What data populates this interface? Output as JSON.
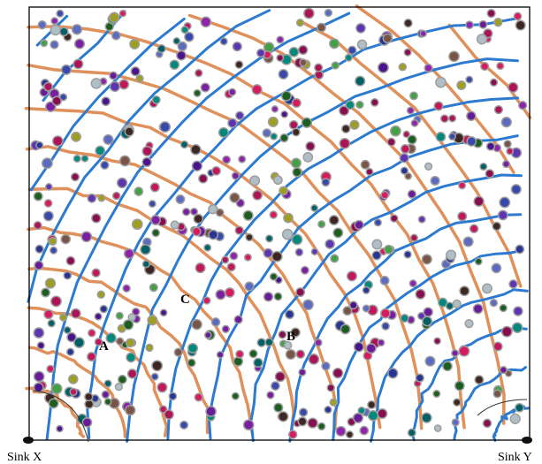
{
  "labels": {
    "point_a": "A",
    "point_b": "B",
    "point_c": "C",
    "sink_x": "Sink X",
    "sink_y": "Sink Y"
  },
  "colors": {
    "blue_contour": "#2c7bd0",
    "orange_contour": "#e0905a",
    "frame": "#000000"
  },
  "node_palette": [
    "#7a1fa2",
    "#c2185b",
    "#4a148c",
    "#3949ab",
    "#6a1b9a",
    "#ad1457",
    "#880e4f",
    "#5e35b1",
    "#8e24aa",
    "#1b5e20",
    "#3e2723",
    "#006064",
    "#9e9d24",
    "#00897b",
    "#d81b60",
    "#5c6bc0",
    "#795548",
    "#283593",
    "#43a047",
    "#b0bec5"
  ]
}
